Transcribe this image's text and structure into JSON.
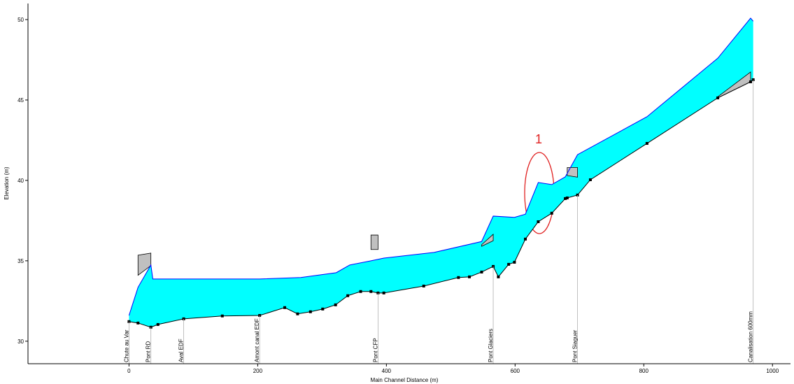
{
  "chart_data": {
    "type": "profile",
    "x_label": "Main Channel Distance (m)",
    "y_label": "Elevation (m)",
    "xlim": [
      -157,
      1028
    ],
    "ylim": [
      28.6,
      51
    ],
    "xticks": [
      0,
      200,
      400,
      600,
      800,
      1000
    ],
    "yticks": [
      30,
      35,
      40,
      45,
      50
    ],
    "series": [
      {
        "color": "#0000ff",
        "fill": "#00ffff",
        "x": [
          0,
          14,
          34,
          37,
          203,
          267,
          322,
          343,
          376,
          396,
          474,
          548,
          566,
          599,
          616,
          636,
          657,
          678,
          697,
          805,
          915,
          966,
          970
        ],
        "values": [
          31.6,
          33.35,
          34.74,
          33.87,
          33.87,
          33.96,
          34.26,
          34.74,
          35.0,
          35.17,
          35.52,
          36.2,
          37.78,
          37.7,
          37.9,
          39.87,
          39.74,
          40.22,
          41.6,
          43.96,
          47.6,
          50.09,
          49.9
        ]
      },
      {
        "color": "#000000",
        "x": [
          0,
          14,
          34,
          45,
          85,
          145,
          203,
          242,
          262,
          282,
          301,
          321,
          340,
          360,
          376,
          387,
          396,
          458,
          512,
          529,
          548,
          566,
          574,
          590,
          599,
          616,
          636,
          657,
          678,
          681,
          697,
          717,
          805,
          915,
          966,
          970
        ],
        "values": [
          31.22,
          31.13,
          30.87,
          31.04,
          31.39,
          31.57,
          31.6,
          32.09,
          31.7,
          31.83,
          32.0,
          32.26,
          32.83,
          33.09,
          33.09,
          33.0,
          33.0,
          33.43,
          33.96,
          34.0,
          34.3,
          34.65,
          34.0,
          34.78,
          34.91,
          36.35,
          37.43,
          37.96,
          38.87,
          38.91,
          39.09,
          40.04,
          42.3,
          45.13,
          46.13,
          46.26
        ]
      }
    ],
    "bridges": [
      {
        "x": [
          14,
          34
        ],
        "top": [
          35.35,
          35.48
        ],
        "low": [
          34.1,
          34.7
        ]
      },
      {
        "x": [
          376,
          387
        ],
        "top": [
          36.6,
          36.6
        ],
        "low": [
          35.7,
          35.7
        ]
      },
      {
        "x": [
          548,
          566
        ],
        "top": [
          36.0,
          36.65
        ],
        "low": [
          35.9,
          36.25
        ]
      },
      {
        "x": [
          681,
          697
        ],
        "top": [
          40.8,
          40.8
        ],
        "low": [
          40.3,
          40.2
        ]
      },
      {
        "x": [
          915,
          966
        ],
        "top": [
          45.2,
          46.74
        ],
        "low": [
          45.13,
          46.13
        ]
      }
    ],
    "stations": [
      {
        "name": "Chute au Var",
        "x": 0
      },
      {
        "name": "Pont RD",
        "x": 34
      },
      {
        "name": "Aval EDF",
        "x": 85
      },
      {
        "name": "Amont canal EDF",
        "x": 203
      },
      {
        "name": "Pont CFP",
        "x": 387
      },
      {
        "name": "Pont Glaciers",
        "x": 566
      },
      {
        "name": "Pont Siaguer",
        "x": 697
      },
      {
        "name": "Canalisation 600mm",
        "x": 970
      }
    ],
    "annotations": [
      {
        "text": "1"
      }
    ]
  }
}
